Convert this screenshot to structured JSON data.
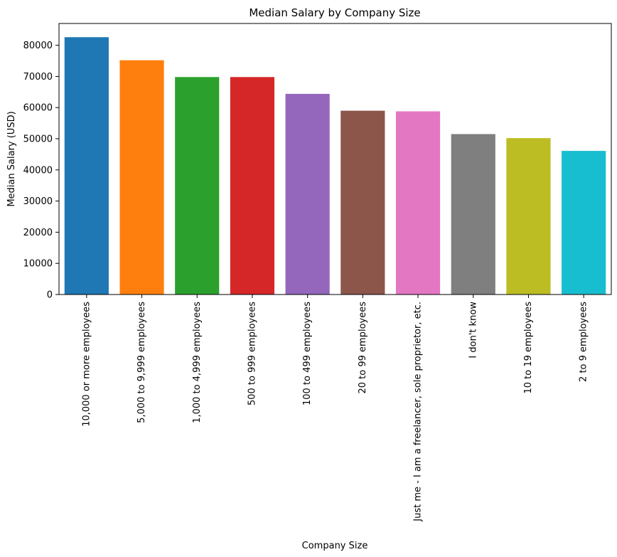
{
  "chart_data": {
    "type": "bar",
    "title": "Median Salary by Company Size",
    "xlabel": "Company Size",
    "ylabel": "Median Salary (USD)",
    "categories": [
      "10,000 or more employees",
      "5,000 to 9,999 employees",
      "1,000 to 4,999 employees",
      "500 to 999 employees",
      "100 to 499 employees",
      "20 to 99 employees",
      "Just me - I am a freelancer, sole proprietor, etc.",
      "I don't know",
      "10 to 19 employees",
      "2 to 9 employees"
    ],
    "values": [
      82600,
      75200,
      69800,
      69800,
      64400,
      59000,
      58800,
      51500,
      50200,
      46100
    ],
    "colors": [
      "#1f77b4",
      "#ff7f0e",
      "#2ca02c",
      "#d62728",
      "#9467bd",
      "#8c564b",
      "#e377c2",
      "#7f7f7f",
      "#bcbd22",
      "#17becf"
    ],
    "yticks": [
      "0",
      "10000",
      "20000",
      "30000",
      "40000",
      "50000",
      "60000",
      "70000",
      "80000"
    ],
    "ylim": [
      0,
      87000
    ],
    "grid": false,
    "legend": "none"
  }
}
